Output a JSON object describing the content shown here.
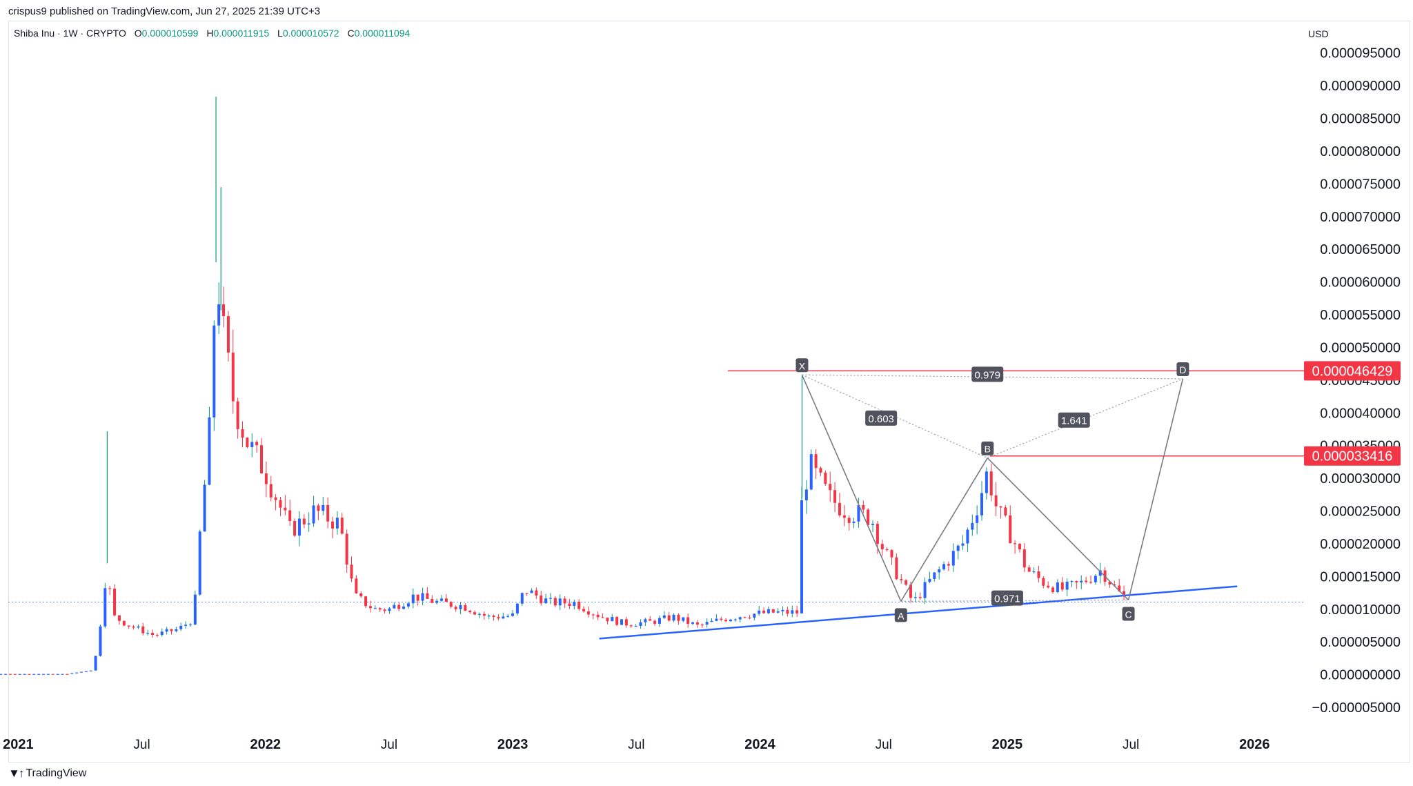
{
  "attribution": "crispus9 published on TradingView.com, Jun 27, 2025 21:39 UTC+3",
  "legend": {
    "symbol": "Shiba Inu · 1W · CRYPTO",
    "o_label": "O",
    "o": "0.000010599",
    "h_label": "H",
    "h": "0.000011915",
    "l_label": "L",
    "l": "0.000010572",
    "c_label": "C",
    "c": "0.000011094"
  },
  "currency": "USD",
  "footer_brand": "TradingView",
  "colors": {
    "up": "#2962ff",
    "down": "#f23645",
    "trend": "#2962ff",
    "pattern": "#787b86",
    "badge": "#f23645",
    "label_bg": "#50535e"
  },
  "chart_data": {
    "type": "candlestick",
    "ylim": [
      -5e-06,
      9.55e-05
    ],
    "y_ticks": [
      "−0.000005000",
      "0.000000000",
      "0.000005000",
      "0.000010000",
      "0.000015000",
      "0.000020000",
      "0.000025000",
      "0.000030000",
      "0.000035000",
      "0.000040000",
      "0.000045000",
      "0.000050000",
      "0.000055000",
      "0.000060000",
      "0.000065000",
      "0.000070000",
      "0.000075000",
      "0.000080000",
      "0.000085000",
      "0.000090000",
      "0.000095000"
    ],
    "y_tick_values": [
      -5e-06,
      0,
      5e-06,
      1e-05,
      1.5e-05,
      2e-05,
      2.5e-05,
      3e-05,
      3.5e-05,
      4e-05,
      4.5e-05,
      5e-05,
      5.5e-05,
      6e-05,
      6.5e-05,
      7e-05,
      7.5e-05,
      8e-05,
      8.5e-05,
      9e-05,
      9.5e-05
    ],
    "x_ticks": [
      {
        "label": "2021",
        "t": 2021.0,
        "year": true
      },
      {
        "label": "Jul",
        "t": 2021.5,
        "year": false
      },
      {
        "label": "2022",
        "t": 2022.0,
        "year": true
      },
      {
        "label": "Jul",
        "t": 2022.5,
        "year": false
      },
      {
        "label": "2023",
        "t": 2023.0,
        "year": true
      },
      {
        "label": "Jul",
        "t": 2023.5,
        "year": false
      },
      {
        "label": "2024",
        "t": 2024.0,
        "year": true
      },
      {
        "label": "Jul",
        "t": 2024.5,
        "year": false
      },
      {
        "label": "2025",
        "t": 2025.0,
        "year": true
      },
      {
        "label": "Jul",
        "t": 2025.5,
        "year": false
      },
      {
        "label": "2026",
        "t": 2026.0,
        "year": true
      }
    ],
    "xlim": [
      2020.96,
      2026.2
    ],
    "price_path": [
      [
        2020.47,
        1e-07
      ],
      [
        2021.2,
        1e-07
      ],
      [
        2021.3,
        7e-07
      ],
      [
        2021.31,
        2e-06
      ],
      [
        2021.33,
        7e-06
      ],
      [
        2021.36,
        1.7e-05
      ],
      [
        2021.38,
        9e-06
      ],
      [
        2021.45,
        7.5e-06
      ],
      [
        2021.55,
        6e-06
      ],
      [
        2021.65,
        7e-06
      ],
      [
        2021.71,
        8.5e-06
      ],
      [
        2021.74,
        2.4e-05
      ],
      [
        2021.76,
        3.1e-05
      ],
      [
        2021.78,
        4e-05
      ],
      [
        2021.8,
        6.3e-05
      ],
      [
        2021.83,
        5.2e-05
      ],
      [
        2021.87,
        4.2e-05
      ],
      [
        2021.92,
        3.6e-05
      ],
      [
        2022.0,
        3.1e-05
      ],
      [
        2022.1,
        2.2e-05
      ],
      [
        2022.2,
        2.5e-05
      ],
      [
        2022.3,
        2.3e-05
      ],
      [
        2022.36,
        1.2e-05
      ],
      [
        2022.44,
        1e-05
      ],
      [
        2022.5,
        1e-05
      ],
      [
        2022.6,
        1.2e-05
      ],
      [
        2022.7,
        1.1e-05
      ],
      [
        2022.8,
        1.05e-05
      ],
      [
        2022.9,
        8.8e-06
      ],
      [
        2023.0,
        9e-06
      ],
      [
        2023.05,
        1.3e-05
      ],
      [
        2023.15,
        1.1e-05
      ],
      [
        2023.25,
        1.1e-05
      ],
      [
        2023.35,
        9e-06
      ],
      [
        2023.45,
        7.8e-06
      ],
      [
        2023.55,
        8e-06
      ],
      [
        2023.65,
        8.8e-06
      ],
      [
        2023.75,
        7.4e-06
      ],
      [
        2023.85,
        8.5e-06
      ],
      [
        2023.95,
        9.2e-06
      ],
      [
        2024.05,
        9.5e-06
      ],
      [
        2024.15,
        9.5e-06
      ],
      [
        2024.17,
        2.7e-05
      ],
      [
        2024.2,
        3.2e-05
      ],
      [
        2024.28,
        2.7e-05
      ],
      [
        2024.35,
        2.5e-05
      ],
      [
        2024.45,
        2.4e-05
      ],
      [
        2024.5,
        1.9e-05
      ],
      [
        2024.56,
        1.5e-05
      ],
      [
        2024.62,
        1.1e-05
      ],
      [
        2024.68,
        1.4e-05
      ],
      [
        2024.75,
        1.7e-05
      ],
      [
        2024.82,
        2e-05
      ],
      [
        2024.88,
        2.6e-05
      ],
      [
        2024.92,
        3.1e-05
      ],
      [
        2024.96,
        2.5e-05
      ],
      [
        2025.02,
        2.1e-05
      ],
      [
        2025.08,
        1.6e-05
      ],
      [
        2025.15,
        1.4e-05
      ],
      [
        2025.22,
        1.3e-05
      ],
      [
        2025.3,
        1.4e-05
      ],
      [
        2025.38,
        1.6e-05
      ],
      [
        2025.44,
        1.3e-05
      ],
      [
        2025.49,
        1.1e-05
      ]
    ],
    "wick_spikes": [
      {
        "t": 2021.36,
        "high": 3.72e-05
      },
      {
        "t": 2021.8,
        "high": 8.83e-05
      },
      {
        "t": 2021.82,
        "high": 7.45e-05
      },
      {
        "t": 2024.17,
        "high": 4.56e-05
      }
    ],
    "current_price": 1.1094e-05,
    "horizontal_levels": [
      {
        "price": 4.6429e-05,
        "label": "0.000046429",
        "t_start": 2023.87
      },
      {
        "price": 3.3416e-05,
        "label": "0.000033416",
        "t_start": 2024.93
      }
    ],
    "trendline": {
      "t1": 2023.35,
      "p1": 5.5e-06,
      "t2": 2025.93,
      "p2": 1.35e-05
    },
    "pattern_points": [
      {
        "name": "X",
        "t": 2024.17,
        "p": 4.58e-05
      },
      {
        "name": "A",
        "t": 2024.57,
        "p": 1.12e-05
      },
      {
        "name": "B",
        "t": 2024.92,
        "p": 3.31e-05
      },
      {
        "name": "C",
        "t": 2025.49,
        "p": 1.14e-05
      },
      {
        "name": "D",
        "t": 2025.71,
        "p": 4.52e-05
      }
    ],
    "ratios": [
      {
        "label": "0.603",
        "t": 2024.49,
        "p": 3.92e-05
      },
      {
        "label": "0.979",
        "t": 2024.92,
        "p": 4.59e-05
      },
      {
        "label": "1.641",
        "t": 2025.27,
        "p": 3.89e-05
      },
      {
        "label": "0.971",
        "t": 2025.0,
        "p": 1.17e-05
      }
    ]
  }
}
